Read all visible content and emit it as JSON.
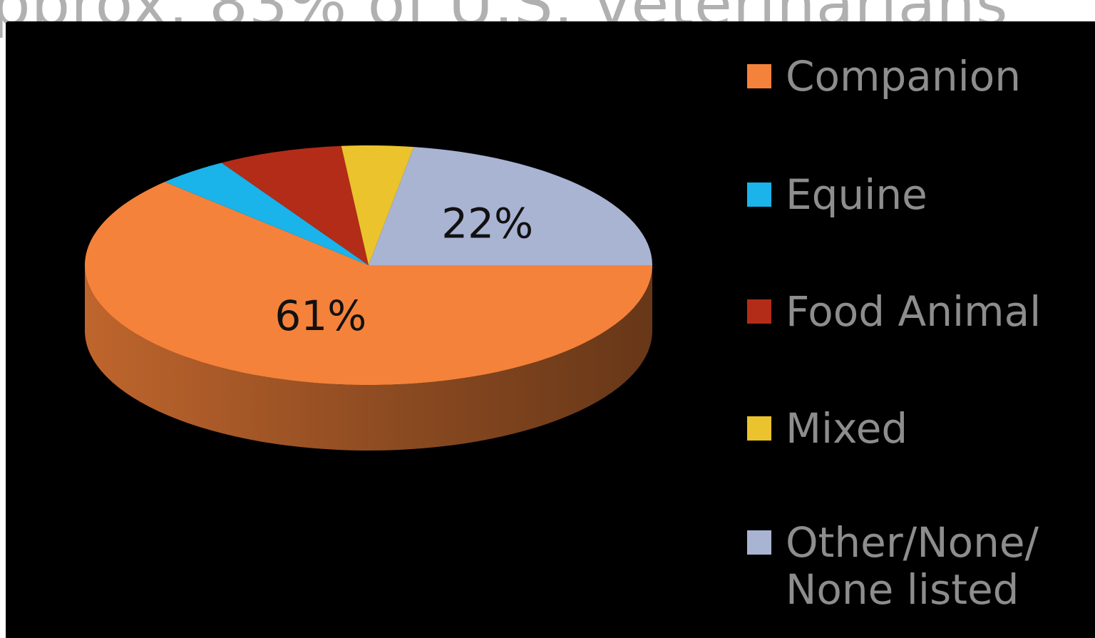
{
  "slide": {
    "partial_title": "pprox. 83% of U.S. veterinarians"
  },
  "chart_data": {
    "type": "pie",
    "style": "3d",
    "categories": [
      "Companion",
      "Equine",
      "Food Animal",
      "Mixed",
      "Other/None/\nNone listed"
    ],
    "values": [
      61,
      4,
      7,
      4,
      22
    ],
    "data_labels": [
      "61%",
      "",
      "",
      "",
      "22%"
    ],
    "colors": [
      "#f5823a",
      "#1ab3ea",
      "#b32c18",
      "#ebc32c",
      "#a9b4d3"
    ],
    "title": "",
    "legend_position": "right",
    "background": "#000000"
  }
}
